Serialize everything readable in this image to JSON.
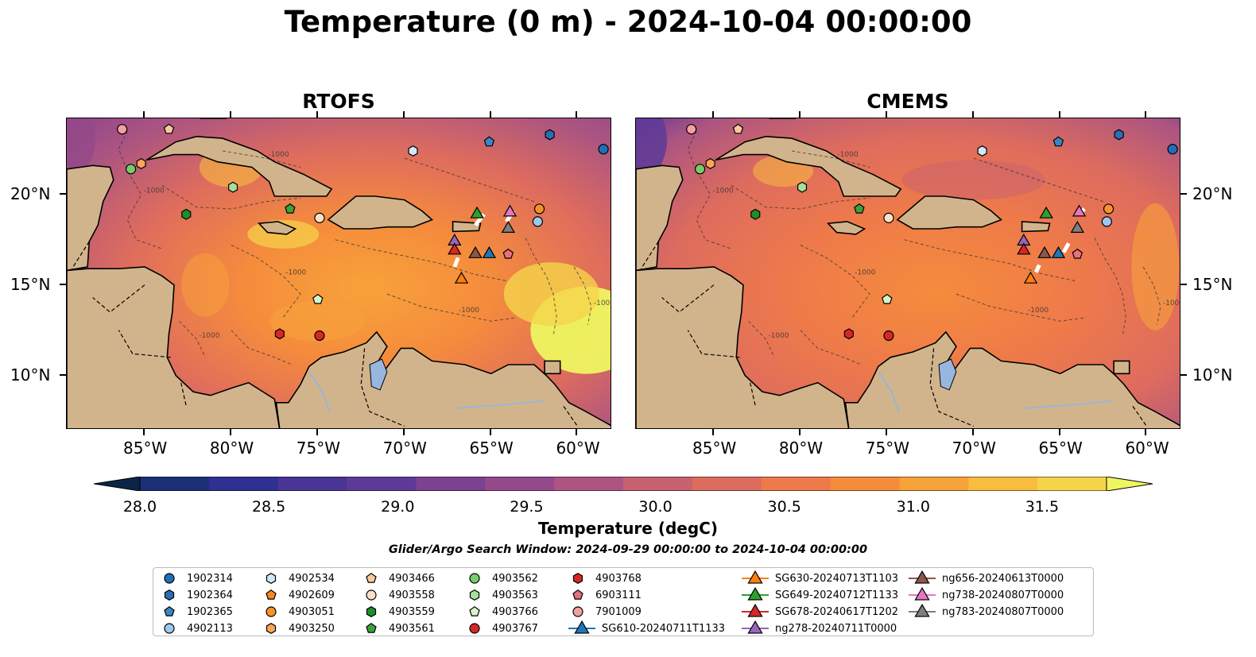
{
  "title": "Temperature (0 m) - 2024-10-04 00:00:00",
  "panels": [
    {
      "title": "RTOFS"
    },
    {
      "title": "CMEMS"
    }
  ],
  "axes": {
    "lon_labels": [
      "85°W",
      "80°W",
      "75°W",
      "70°W",
      "65°W",
      "60°W"
    ],
    "lat_labels": [
      "20°N",
      "15°N",
      "10°N"
    ],
    "lon_range": [
      -89.5,
      -58.0
    ],
    "lat_range": [
      7.0,
      24.2
    ]
  },
  "colorbar": {
    "label": "Temperature (degC)",
    "ticks": [
      "28.0",
      "28.5",
      "29.0",
      "29.5",
      "30.0",
      "30.5",
      "31.0",
      "31.5"
    ],
    "range": [
      28.0,
      31.75
    ],
    "colors": [
      "#0b2548",
      "#1c3078",
      "#2e3092",
      "#4a3496",
      "#5e3a98",
      "#7a4290",
      "#94498a",
      "#ad5580",
      "#c76270",
      "#de6c5e",
      "#ee7a4a",
      "#f58c3c",
      "#f8a23a",
      "#f7bc40",
      "#f5d44a",
      "#eef560"
    ]
  },
  "search_window": "Glider/Argo Search Window: 2024-09-29 00:00:00 to 2024-10-04 00:00:00",
  "contour_label": "-1000",
  "legend": [
    {
      "label": "1902314",
      "marker": "circle",
      "color": "#1f6fb8"
    },
    {
      "label": "1902364",
      "marker": "hexagon",
      "color": "#2a6fb0"
    },
    {
      "label": "1902365",
      "marker": "pentagon",
      "color": "#3d84c4"
    },
    {
      "label": "4902113",
      "marker": "circle",
      "color": "#9cc8ee"
    },
    {
      "label": "4902534",
      "marker": "hexagon",
      "color": "#d2e8f8"
    },
    {
      "label": "4902609",
      "marker": "pentagon",
      "color": "#f5881e"
    },
    {
      "label": "4903051",
      "marker": "circle",
      "color": "#f7922a"
    },
    {
      "label": "4903250",
      "marker": "hexagon",
      "color": "#f8a45a"
    },
    {
      "label": "4903466",
      "marker": "pentagon",
      "color": "#f8c99a"
    },
    {
      "label": "4903558",
      "marker": "circle",
      "color": "#fbe1c4"
    },
    {
      "label": "4903559",
      "marker": "hexagon",
      "color": "#1f8f2a"
    },
    {
      "label": "4903561",
      "marker": "pentagon",
      "color": "#3aa33a"
    },
    {
      "label": "4903562",
      "marker": "circle",
      "color": "#77cc6a"
    },
    {
      "label": "4903563",
      "marker": "hexagon",
      "color": "#a6e19a"
    },
    {
      "label": "4903766",
      "marker": "pentagon",
      "color": "#d5f5c8"
    },
    {
      "label": "4903767",
      "marker": "circle",
      "color": "#d62728"
    },
    {
      "label": "4903768",
      "marker": "hexagon",
      "color": "#d62728"
    },
    {
      "label": "6903111",
      "marker": "pentagon",
      "color": "#e8707a"
    },
    {
      "label": "7901009",
      "marker": "circle",
      "color": "#f4a0a0"
    },
    {
      "label": "SG610-20240711T1133",
      "marker": "triangle-line",
      "color": "#1f77b4"
    },
    {
      "label": "SG630-20240713T1103",
      "marker": "triangle-line",
      "color": "#ff7f0e"
    },
    {
      "label": "SG649-20240712T1133",
      "marker": "triangle-line",
      "color": "#2ca02c"
    },
    {
      "label": "SG678-20240617T1202",
      "marker": "triangle-line",
      "color": "#d62728"
    },
    {
      "label": "ng278-20240711T0000",
      "marker": "triangle-line",
      "color": "#9467bd"
    },
    {
      "label": "ng656-20240613T0000",
      "marker": "triangle-line",
      "color": "#8c564b"
    },
    {
      "label": "ng738-20240807T0000",
      "marker": "triangle-line",
      "color": "#e377c2"
    },
    {
      "label": "ng783-20240807T0000",
      "marker": "triangle-line",
      "color": "#7f7f7f"
    }
  ],
  "floats": [
    {
      "id": "7901009",
      "lon": -86.3,
      "lat": 23.6
    },
    {
      "id": "4903466",
      "lon": -83.6,
      "lat": 23.6
    },
    {
      "id": "4903562",
      "lon": -85.8,
      "lat": 21.4
    },
    {
      "id": "4903250",
      "lon": -85.2,
      "lat": 21.7
    },
    {
      "id": "4903563",
      "lon": -79.9,
      "lat": 20.4
    },
    {
      "id": "4903559",
      "lon": -82.6,
      "lat": 18.9
    },
    {
      "id": "4903561",
      "lon": -76.6,
      "lat": 19.2
    },
    {
      "id": "4903558",
      "lon": -74.9,
      "lat": 18.7
    },
    {
      "id": "4902534",
      "lon": -69.5,
      "lat": 22.4
    },
    {
      "id": "1902365",
      "lon": -65.1,
      "lat": 22.9
    },
    {
      "id": "1902364",
      "lon": -61.6,
      "lat": 23.3
    },
    {
      "id": "1902314",
      "lon": -58.5,
      "lat": 22.5
    },
    {
      "id": "4903051",
      "lon": -62.2,
      "lat": 19.2
    },
    {
      "id": "4902113",
      "lon": -62.3,
      "lat": 18.5
    },
    {
      "id": "6903111",
      "lon": -64.0,
      "lat": 16.7
    },
    {
      "id": "4903766",
      "lon": -75.0,
      "lat": 14.2
    },
    {
      "id": "4903768",
      "lon": -77.2,
      "lat": 12.3
    },
    {
      "id": "4903767",
      "lon": -74.9,
      "lat": 12.2
    }
  ],
  "gliders": [
    {
      "id": "SG649-20240712T1133",
      "lon": -65.8,
      "lat": 18.9
    },
    {
      "id": "ng738-20240807T0000",
      "lon": -63.9,
      "lat": 19.0
    },
    {
      "id": "ng783-20240807T0000",
      "lon": -64.0,
      "lat": 18.1
    },
    {
      "id": "ng278-20240711T0000",
      "lon": -67.1,
      "lat": 17.4
    },
    {
      "id": "SG678-20240617T1202",
      "lon": -67.1,
      "lat": 16.9
    },
    {
      "id": "ng656-20240613T0000",
      "lon": -65.9,
      "lat": 16.7
    },
    {
      "id": "SG610-20240711T1133",
      "lon": -65.1,
      "lat": 16.7
    },
    {
      "id": "SG630-20240713T1103",
      "lon": -66.7,
      "lat": 15.3
    }
  ]
}
